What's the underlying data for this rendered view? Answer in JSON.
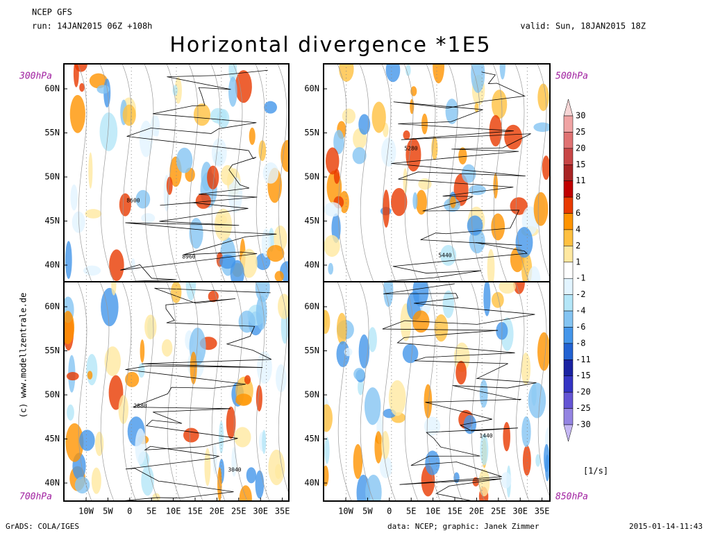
{
  "header": {
    "model": "NCEP GFS",
    "run": "run: 14JAN2015 06Z +108h",
    "valid": "valid: Sun, 18JAN2015 18Z",
    "title": "Horizontal divergence *1E5"
  },
  "panels": [
    {
      "level": "300hPa",
      "contour_labels": [
        "8600",
        "8960"
      ]
    },
    {
      "level": "500hPa",
      "contour_labels": [
        "5280",
        "5440"
      ]
    },
    {
      "level": "700hPa",
      "contour_labels": [
        "2880",
        "3040"
      ]
    },
    {
      "level": "850hPa",
      "contour_labels": [
        "1440"
      ]
    }
  ],
  "lat_labels": [
    "60N",
    "55N",
    "50N",
    "45N",
    "40N"
  ],
  "lon_labels": [
    "10W",
    "5W",
    "0",
    "5E",
    "10E",
    "15E",
    "20E",
    "25E",
    "30E",
    "35E"
  ],
  "colorbar": {
    "levels": [
      30,
      25,
      20,
      15,
      11,
      8,
      6,
      4,
      2,
      1,
      -1,
      -2,
      -4,
      -6,
      -8,
      -11,
      -15,
      -20,
      -25,
      -30
    ],
    "colors": [
      "#f6d6d6",
      "#f0a4a4",
      "#e07272",
      "#c84646",
      "#a82424",
      "#c00000",
      "#e83a00",
      "#ff9400",
      "#ffc040",
      "#ffe8a0",
      "#ffffff",
      "#e2f4ff",
      "#b4e6f8",
      "#84c4f2",
      "#4496ea",
      "#2262d2",
      "#1a22a2",
      "#3434c4",
      "#6454d4",
      "#9484e2",
      "#c6b8f4"
    ],
    "unit": "[1/s]"
  },
  "side_text": "(c) www.modellzentrale.de",
  "footer": {
    "left": "GrADS: COLA/IGES",
    "center": "data: NCEP; graphic: Janek Zimmer",
    "right": "2015-01-14-11:43"
  }
}
